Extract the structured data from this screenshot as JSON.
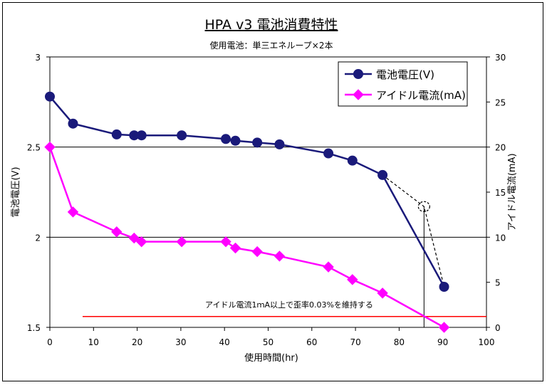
{
  "chart_data": {
    "type": "line",
    "title": "HPA v3 電池消費特性",
    "subtitle": "使用電池：単三エネループ×2本",
    "xlabel": "使用時間(hr)",
    "ylabel": "電池電圧(V)",
    "y2label": "アイドル電流(mA)",
    "xlim": [
      0,
      100
    ],
    "ylim": [
      1.5,
      3
    ],
    "y2lim": [
      0,
      30
    ],
    "xticks": [
      "0",
      "10",
      "20",
      "30",
      "40",
      "50",
      "60",
      "70",
      "80",
      "90",
      "100"
    ],
    "yticks": [
      "1.5",
      "2",
      "2.5",
      "3"
    ],
    "y2ticks": [
      "0",
      "5",
      "10",
      "15",
      "20",
      "25",
      "30"
    ],
    "gridlines_y": [
      2,
      2.5
    ],
    "legend_position": "top-right",
    "series": [
      {
        "name": "電池電圧(V)",
        "axis": "left",
        "color": "#1a1a7a",
        "marker": "circle",
        "x": [
          0,
          5.3,
          15.3,
          19.3,
          21,
          30.2,
          40.3,
          42.5,
          47.5,
          52.6,
          63.8,
          69.3,
          76.2,
          90.3
        ],
        "y": [
          2.78,
          2.63,
          2.57,
          2.565,
          2.565,
          2.565,
          2.545,
          2.535,
          2.525,
          2.515,
          2.465,
          2.425,
          2.345,
          1.725
        ]
      },
      {
        "name": "アイドル電流(mA)",
        "axis": "right",
        "color": "#ff00ff",
        "marker": "diamond",
        "x": [
          0,
          5.3,
          15.3,
          19.3,
          21,
          30.2,
          40.3,
          42.5,
          47.5,
          52.6,
          63.8,
          69.3,
          76.2,
          90.3
        ],
        "y": [
          20,
          12.8,
          10.6,
          9.9,
          9.5,
          9.5,
          9.5,
          8.8,
          8.4,
          7.9,
          6.7,
          5.3,
          3.8,
          0
        ]
      }
    ],
    "annotations": {
      "threshold_label": "アイドル電流1ｍA以上で歪率0.03%を維持する",
      "threshold_color": "#ff0000",
      "threshold_y2": 1.2,
      "threshold_x_range": [
        7.5,
        100
      ],
      "dashed_path": [
        [
          76.2,
          2.345
        ],
        [
          85.7,
          2.17
        ],
        [
          90.3,
          1.725
        ]
      ],
      "dashed_circle_at": [
        85.7,
        2.17
      ],
      "vertical_marker_x": 85.7
    }
  }
}
